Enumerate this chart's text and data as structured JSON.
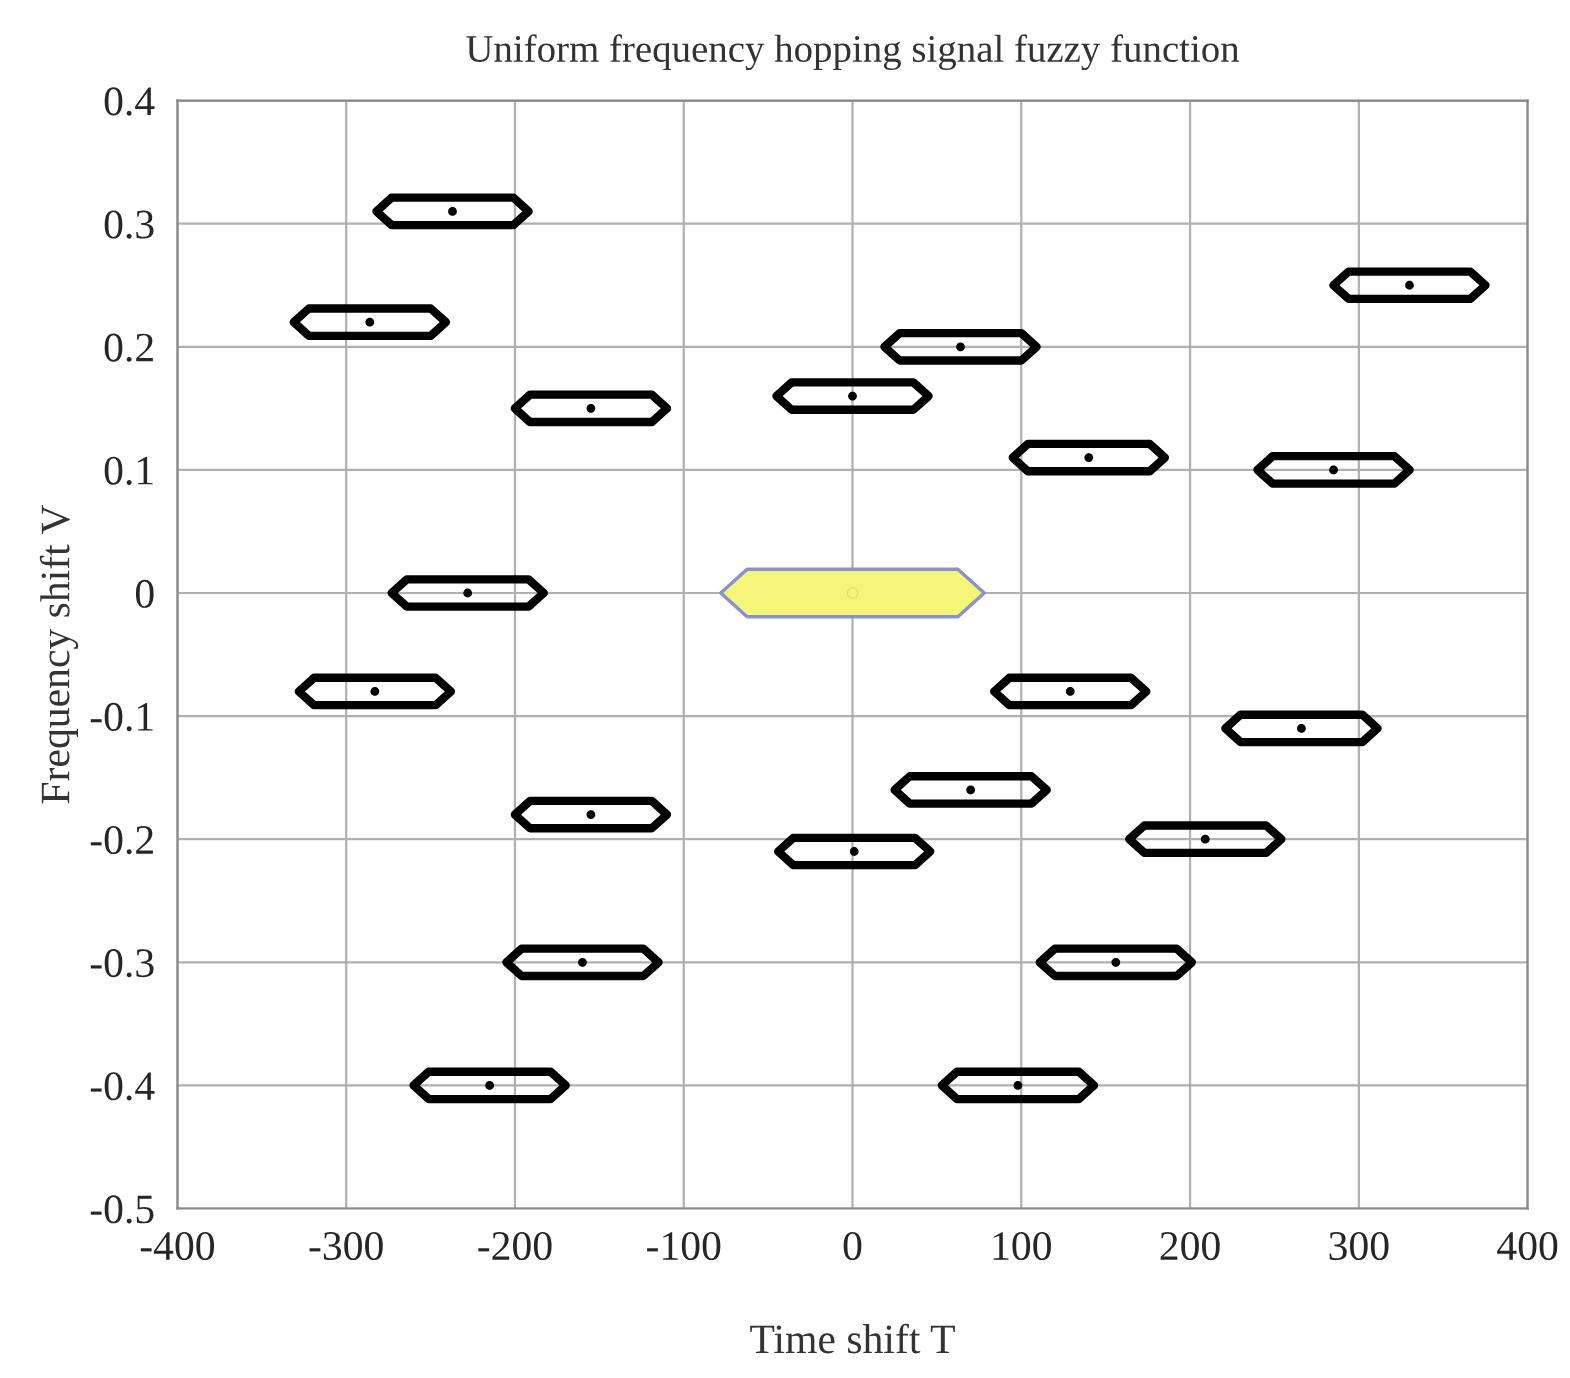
{
  "chart_data": {
    "type": "scatter",
    "title": "Uniform frequency hopping signal fuzzy function",
    "xlabel": "Time shift T",
    "ylabel": "Frequency shift V",
    "xlim": [
      -400,
      400
    ],
    "ylim": [
      -0.5,
      0.4
    ],
    "xticks": [
      -400,
      -300,
      -200,
      -100,
      0,
      100,
      200,
      300,
      400
    ],
    "yticks": [
      {
        "value": -0.5,
        "label": "-0.5"
      },
      {
        "value": -0.4,
        "label": "-0.4"
      },
      {
        "value": -0.3,
        "label": "-0.3"
      },
      {
        "value": -0.2,
        "label": "-0.2"
      },
      {
        "value": -0.1,
        "label": "-0.1"
      },
      0,
      0.1,
      0.2,
      0.3,
      0.4
    ],
    "grid": true,
    "series": [
      {
        "color": "#000000",
        "x": [
          -237,
          -286,
          -155,
          0,
          64,
          140,
          285,
          330,
          -228,
          -283,
          129,
          266,
          -155,
          70,
          209,
          1,
          -160,
          156,
          -215,
          98
        ],
        "values": [
          0.31,
          0.22,
          0.15,
          0.16,
          0.2,
          0.11,
          0.1,
          0.25,
          0.0,
          -0.08,
          -0.08,
          -0.11,
          -0.18,
          -0.16,
          -0.2,
          -0.21,
          -0.3,
          -0.3,
          -0.4,
          -0.4
        ]
      },
      {
        "color": "#f5f57a",
        "x": [
          0
        ],
        "values": [
          0.0
        ]
      }
    ]
  }
}
